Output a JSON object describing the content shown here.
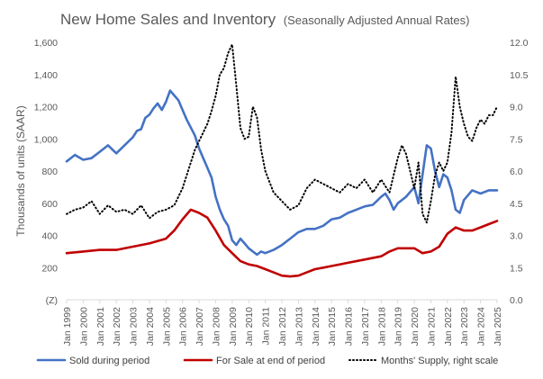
{
  "chart_data": {
    "type": "line",
    "title": "New Home Sales and Inventory",
    "subtitle": "(Seasonally Adjusted Annual Rates)",
    "ylabel": "Thousands of units (SAAR)",
    "ylabel_right": "",
    "xlim": [
      1999,
      2025
    ],
    "ylim": [
      0,
      1600
    ],
    "ylim_right": [
      0,
      12
    ],
    "y_ticks": [
      0,
      200,
      400,
      600,
      800,
      1000,
      1200,
      1400,
      1600
    ],
    "y_tick_labels": [
      "(Z)",
      "200",
      "400",
      "600",
      "800",
      "1,000",
      "1,200",
      "1,400",
      "1,600"
    ],
    "y_right_ticks": [
      0,
      1.5,
      3,
      4.5,
      6,
      7.5,
      9,
      10.5,
      12
    ],
    "y_right_tick_labels": [
      "0.0",
      "1.5",
      "3.0",
      "4.5",
      "6.0",
      "7.5",
      "9.0",
      "10.5",
      "12.0"
    ],
    "x_ticks": [
      1999,
      2000,
      2001,
      2002,
      2003,
      2004,
      2005,
      2006,
      2007,
      2008,
      2009,
      2010,
      2011,
      2012,
      2013,
      2014,
      2015,
      2016,
      2017,
      2018,
      2019,
      2020,
      2021,
      2022,
      2023,
      2024,
      2025
    ],
    "x_tick_labels": [
      "Jan 1999",
      "Jan 2000",
      "Jan 2001",
      "Jan 2002",
      "Jan 2003",
      "Jan 2004",
      "Jan 2005",
      "Jan 2006",
      "Jan 2007",
      "Jan 2008",
      "Jan 2009",
      "Jan 2010",
      "Jan 2011",
      "Jan 2012",
      "Jan 2013",
      "Jan 2014",
      "Jan 2015",
      "Jan 2016",
      "Jan 2017",
      "Jan 2018",
      "Jan 2019",
      "Jan 2020",
      "Jan 2021",
      "Jan 2022",
      "Jan 2023",
      "Jan 2024",
      "Jan 2025"
    ],
    "grid": false,
    "legend_position": "bottom",
    "series": [
      {
        "name": "Sold during period",
        "axis": "left",
        "color": "#4472C4",
        "style": "solid",
        "x": [
          1999,
          1999.5,
          2000,
          2000.5,
          2001,
          2001.5,
          2002,
          2002.5,
          2003,
          2003.25,
          2003.5,
          2003.75,
          2004,
          2004.25,
          2004.5,
          2004.75,
          2005,
          2005.25,
          2005.5,
          2005.75,
          2006,
          2006.25,
          2006.5,
          2006.75,
          2007,
          2007.25,
          2007.5,
          2007.75,
          2008,
          2008.25,
          2008.5,
          2008.75,
          2009,
          2009.25,
          2009.5,
          2009.75,
          2010,
          2010.25,
          2010.5,
          2010.75,
          2011,
          2011.5,
          2012,
          2012.5,
          2013,
          2013.5,
          2014,
          2014.5,
          2015,
          2015.5,
          2016,
          2016.5,
          2017,
          2017.5,
          2018,
          2018.25,
          2018.5,
          2018.75,
          2019,
          2019.5,
          2020,
          2020.25,
          2020.5,
          2020.75,
          2021,
          2021.25,
          2021.5,
          2021.75,
          2022,
          2022.25,
          2022.5,
          2022.75,
          2023,
          2023.5,
          2024,
          2024.5,
          2025
        ],
        "y": [
          860,
          900,
          870,
          880,
          920,
          960,
          910,
          960,
          1010,
          1050,
          1060,
          1130,
          1150,
          1190,
          1220,
          1180,
          1230,
          1300,
          1270,
          1240,
          1180,
          1120,
          1070,
          1020,
          940,
          880,
          820,
          760,
          640,
          560,
          500,
          460,
          370,
          340,
          380,
          350,
          320,
          300,
          280,
          300,
          290,
          310,
          340,
          380,
          420,
          440,
          440,
          460,
          500,
          510,
          540,
          560,
          580,
          590,
          640,
          660,
          620,
          560,
          600,
          640,
          700,
          600,
          780,
          960,
          940,
          800,
          700,
          780,
          760,
          680,
          560,
          540,
          620,
          680,
          660,
          680,
          680
        ]
      },
      {
        "name": "For Sale at end of period",
        "axis": "left",
        "color": "#C00000",
        "style": "solid",
        "x": [
          1999,
          2000,
          2001,
          2002,
          2003,
          2004,
          2005,
          2005.5,
          2006,
          2006.5,
          2007,
          2007.5,
          2008,
          2008.5,
          2009,
          2009.5,
          2010,
          2010.5,
          2011,
          2011.5,
          2012,
          2012.5,
          2013,
          2013.5,
          2014,
          2014.5,
          2015,
          2016,
          2017,
          2018,
          2018.5,
          2019,
          2020,
          2020.5,
          2021,
          2021.5,
          2022,
          2022.5,
          2023,
          2023.5,
          2024,
          2024.5,
          2025
        ],
        "y": [
          290,
          300,
          310,
          310,
          330,
          350,
          380,
          430,
          500,
          560,
          540,
          510,
          430,
          340,
          290,
          240,
          220,
          210,
          190,
          170,
          150,
          145,
          150,
          170,
          190,
          200,
          210,
          230,
          250,
          270,
          300,
          320,
          320,
          290,
          300,
          330,
          410,
          450,
          430,
          430,
          450,
          470,
          490
        ]
      },
      {
        "name": "Months' Supply, right scale",
        "axis": "right",
        "color": "#000000",
        "style": "dotted",
        "x": [
          1999,
          1999.5,
          2000,
          2000.5,
          2001,
          2001.5,
          2002,
          2002.5,
          2003,
          2003.5,
          2004,
          2004.5,
          2005,
          2005.5,
          2006,
          2006.25,
          2006.5,
          2006.75,
          2007,
          2007.25,
          2007.5,
          2007.75,
          2008,
          2008.25,
          2008.5,
          2008.75,
          2009,
          2009.25,
          2009.5,
          2009.75,
          2010,
          2010.25,
          2010.5,
          2010.75,
          2011,
          2011.5,
          2012,
          2012.5,
          2013,
          2013.5,
          2014,
          2014.5,
          2015,
          2015.5,
          2016,
          2016.5,
          2017,
          2017.5,
          2018,
          2018.5,
          2019,
          2019.25,
          2019.5,
          2019.75,
          2020,
          2020.25,
          2020.5,
          2020.75,
          2021,
          2021.25,
          2021.5,
          2021.75,
          2022,
          2022.25,
          2022.5,
          2022.75,
          2023,
          2023.25,
          2023.5,
          2023.75,
          2024,
          2024.25,
          2024.5,
          2024.75,
          2025
        ],
        "y": [
          4.0,
          4.2,
          4.3,
          4.6,
          4.0,
          4.4,
          4.1,
          4.2,
          4.0,
          4.4,
          3.8,
          4.1,
          4.2,
          4.4,
          5.2,
          5.8,
          6.4,
          7.0,
          7.4,
          7.8,
          8.2,
          8.8,
          9.5,
          10.5,
          10.8,
          11.5,
          11.9,
          10.0,
          8.0,
          7.5,
          7.6,
          9.0,
          8.5,
          7.0,
          6.0,
          5.0,
          4.6,
          4.2,
          4.4,
          5.2,
          5.6,
          5.4,
          5.2,
          5.0,
          5.4,
          5.2,
          5.6,
          5.0,
          5.6,
          5.0,
          6.6,
          7.2,
          6.8,
          6.0,
          5.2,
          6.4,
          4.0,
          3.6,
          4.6,
          5.8,
          6.4,
          6.0,
          6.4,
          7.8,
          10.4,
          9.0,
          8.2,
          7.6,
          7.4,
          8.0,
          8.4,
          8.2,
          8.6,
          8.6,
          9.0
        ]
      }
    ]
  }
}
